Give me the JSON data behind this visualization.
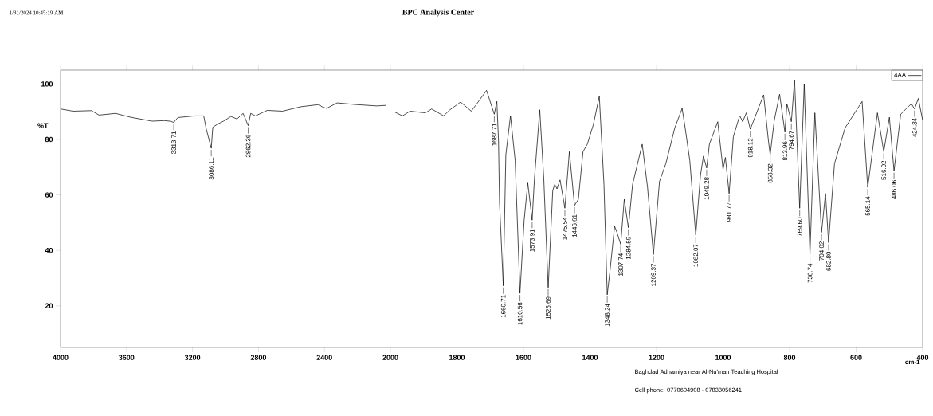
{
  "chart_data": [
    {
      "type": "line",
      "ylabel": "%T",
      "x": [
        4000,
        3923,
        3813,
        3767,
        3666,
        3574,
        3445,
        3371,
        3338,
        3313.71,
        3289,
        3187,
        3132,
        3117,
        3086.11,
        3077,
        3049,
        3012,
        2967,
        2930,
        2893,
        2862.36,
        2847,
        2819,
        2746,
        2654,
        2543,
        2433,
        2415,
        2387,
        2323,
        2212,
        2083,
        2028
      ],
      "series": [
        {
          "color": "#000000",
          "values": [
            91.0,
            90.2,
            90.4,
            88.8,
            89.4,
            88.0,
            86.6,
            86.8,
            86.6,
            86.2,
            87.9,
            88.5,
            88.5,
            83.9,
            76.8,
            84.4,
            85.5,
            86.6,
            88.3,
            87.4,
            89.4,
            85.0,
            89.4,
            88.5,
            90.5,
            90.2,
            91.8,
            92.6,
            91.8,
            91.2,
            93.2,
            92.6,
            92.1,
            92.3
          ]
        }
      ],
      "xlim": [
        4000,
        2000
      ],
      "xticks": [
        4000,
        3600,
        3200,
        2800,
        2400
      ],
      "ylim": [
        5,
        105
      ],
      "yticks": [
        20,
        40,
        60,
        80,
        100
      ],
      "annotations": [
        "1/31/2024 10:45:19 AM",
        {
          "text": "3313.71",
          "x": 3313.71,
          "y": 86.2
        },
        {
          "text": "3086.11",
          "x": 3086.11,
          "y": 76.8
        },
        {
          "text": "2862.36",
          "x": 2862.36,
          "y": 85.0
        }
      ]
    },
    {
      "type": "line",
      "title": "BPC Analysis Center",
      "xlabel": "cm-1",
      "tick_labels": "x",
      "x": [
        1987,
        1964,
        1941,
        1895,
        1876,
        1840,
        1821,
        1789,
        1757,
        1740,
        1711,
        1687.71,
        1680,
        1675,
        1672,
        1660.71,
        1653,
        1639,
        1625,
        1610.56,
        1598,
        1587,
        1573.91,
        1567,
        1551,
        1539,
        1525.69,
        1512,
        1506,
        1499,
        1490,
        1475.54,
        1462,
        1446.61,
        1435,
        1421,
        1408,
        1390,
        1372,
        1358,
        1348.24,
        1340,
        1326,
        1319,
        1307.74,
        1297,
        1284.59,
        1272,
        1243,
        1227,
        1209.37,
        1191,
        1172,
        1145,
        1123,
        1114,
        1100,
        1082.07,
        1068,
        1059,
        1049.28,
        1041,
        1016,
        1000,
        993,
        981.77,
        969,
        950,
        941,
        930,
        918.12,
        878,
        864,
        858.32,
        846,
        830,
        813.96,
        808,
        794.67,
        785,
        769.6,
        756,
        738.74,
        724,
        704.02,
        692,
        682.8,
        665,
        633,
        582,
        565.14,
        536,
        516.92,
        500,
        486.06,
        466,
        434,
        424.34,
        413,
        400
      ],
      "series": [
        {
          "name": "4AA",
          "color": "#000000",
          "values": [
            89.9,
            88.5,
            90.2,
            89.6,
            91.0,
            88.5,
            90.7,
            93.5,
            90.2,
            92.9,
            97.7,
            89.1,
            93.7,
            79.4,
            57.3,
            27.2,
            74.5,
            88.6,
            72.4,
            24.5,
            50.9,
            64.3,
            50.9,
            65.9,
            90.7,
            65.9,
            26.6,
            61.6,
            63.8,
            62.2,
            65.4,
            55.2,
            75.6,
            56.2,
            58.4,
            75.6,
            78.3,
            85.3,
            95.6,
            63.8,
            24.0,
            32.5,
            48.7,
            46.5,
            42.2,
            58.4,
            48.2,
            63.8,
            78.3,
            62.7,
            38.5,
            64.9,
            71.3,
            84.2,
            91.2,
            84.2,
            72.4,
            45.5,
            67.0,
            74.0,
            69.7,
            78.3,
            86.4,
            69.2,
            73.5,
            60.5,
            81.0,
            88.6,
            86.4,
            89.6,
            83.7,
            96.1,
            80.0,
            74.5,
            86.9,
            96.3,
            82.6,
            92.9,
            86.4,
            101.5,
            55.2,
            99.9,
            38.5,
            89.6,
            46.5,
            60.5,
            42.8,
            71.3,
            84.2,
            93.7,
            62.7,
            89.6,
            75.6,
            88.0,
            68.6,
            89.1,
            92.9,
            91.0,
            94.8,
            86.9
          ]
        }
      ],
      "xlim": [
        2000,
        400
      ],
      "xticks": [
        2000,
        1800,
        1600,
        1400,
        1200,
        1000,
        800,
        600,
        400
      ],
      "ylim": [
        5,
        105
      ],
      "yticks": [
        20,
        40,
        60,
        80,
        100
      ],
      "legend": "top right",
      "annotations": [
        "Baghdad Adhamiya near Al-Nu'man Teaching Hospital",
        "Cell phone: 0770604908 - 07833056241",
        {
          "text": "1687.71",
          "x": 1687.71,
          "y": 89.1
        },
        {
          "text": "1660.71",
          "x": 1660.71,
          "y": 27.2
        },
        {
          "text": "1610.56",
          "x": 1610.56,
          "y": 24.5
        },
        {
          "text": "1573.91",
          "x": 1573.91,
          "y": 50.9
        },
        {
          "text": "1525.69",
          "x": 1525.69,
          "y": 26.6
        },
        {
          "text": "1475.54",
          "x": 1475.54,
          "y": 55.2
        },
        {
          "text": "1446.61",
          "x": 1446.61,
          "y": 56.2
        },
        {
          "text": "1348.24",
          "x": 1348.24,
          "y": 24.0
        },
        {
          "text": "1307.74",
          "x": 1307.74,
          "y": 42.2
        },
        {
          "text": "1284.59",
          "x": 1284.59,
          "y": 48.2
        },
        {
          "text": "1209.37",
          "x": 1209.37,
          "y": 38.5
        },
        {
          "text": "1082.07",
          "x": 1082.07,
          "y": 45.5
        },
        {
          "text": "1049.28",
          "x": 1049.28,
          "y": 69.7
        },
        {
          "text": "981.77",
          "x": 981.77,
          "y": 60.5
        },
        {
          "text": "918.12",
          "x": 918.12,
          "y": 83.7
        },
        {
          "text": "858.32",
          "x": 858.32,
          "y": 74.5
        },
        {
          "text": "813.96",
          "x": 813.96,
          "y": 82.6
        },
        {
          "text": "794.67",
          "x": 794.67,
          "y": 86.4
        },
        {
          "text": "769.60",
          "x": 769.6,
          "y": 55.2
        },
        {
          "text": "738.74",
          "x": 738.74,
          "y": 38.5
        },
        {
          "text": "704.02",
          "x": 704.02,
          "y": 46.5
        },
        {
          "text": "682.80",
          "x": 682.8,
          "y": 42.8
        },
        {
          "text": "565.14",
          "x": 565.14,
          "y": 62.7
        },
        {
          "text": "516.92",
          "x": 516.92,
          "y": 75.6
        },
        {
          "text": "486.06",
          "x": 486.06,
          "y": 68.6
        },
        {
          "text": "424.34",
          "x": 424.34,
          "y": 91.0
        }
      ]
    }
  ]
}
